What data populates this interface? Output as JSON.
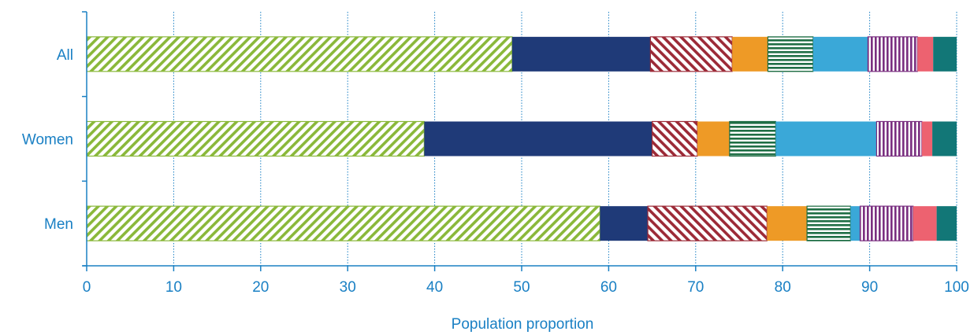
{
  "chart_data": {
    "type": "bar",
    "orientation": "horizontal",
    "stacked": true,
    "title": "",
    "xlabel": "Population proportion",
    "ylabel": "",
    "xlim": [
      0,
      100
    ],
    "xticks": [
      0,
      10,
      20,
      30,
      40,
      50,
      60,
      70,
      80,
      90,
      100
    ],
    "grid": "vertical dotted",
    "legend": "none",
    "categories": [
      "All",
      "Women",
      "Men"
    ],
    "series": [
      {
        "values": [
          48.9,
          38.8,
          59.0
        ],
        "color": "#8ab83a",
        "pattern": "diagonal-stripes-forward"
      },
      {
        "values": [
          15.9,
          26.2,
          5.5
        ],
        "color": "#1f3a78",
        "pattern": "solid"
      },
      {
        "values": [
          9.4,
          5.2,
          13.7
        ],
        "color": "#9c2a37",
        "pattern": "diagonal-stripes-backward"
      },
      {
        "values": [
          4.1,
          3.7,
          4.6
        ],
        "color": "#ee9a26",
        "pattern": "solid"
      },
      {
        "values": [
          5.2,
          5.3,
          5.0
        ],
        "color": "#1f6e45",
        "pattern": "horizontal-stripes"
      },
      {
        "values": [
          6.3,
          11.6,
          1.1
        ],
        "color": "#3aa8d8",
        "pattern": "solid"
      },
      {
        "values": [
          5.7,
          5.2,
          6.1
        ],
        "color": "#7a2f80",
        "pattern": "vertical-stripes"
      },
      {
        "values": [
          1.8,
          1.2,
          2.7
        ],
        "color": "#ed6270",
        "pattern": "solid"
      },
      {
        "values": [
          2.7,
          2.8,
          2.3
        ],
        "color": "#127777",
        "pattern": "solid"
      }
    ]
  }
}
